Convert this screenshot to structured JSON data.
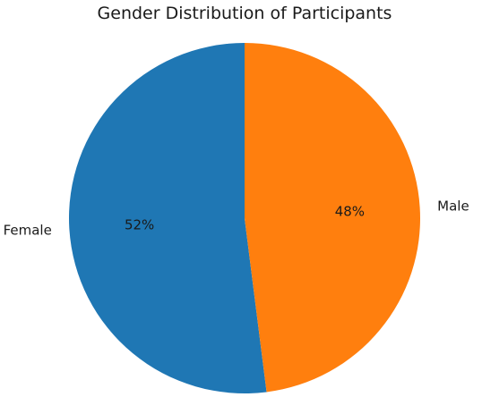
{
  "chart_data": {
    "type": "pie",
    "title": "Gender Distribution of Participants",
    "labels": [
      "Female",
      "Male"
    ],
    "values": [
      52,
      48
    ],
    "percent_labels": [
      "52%",
      "48%"
    ],
    "colors": [
      "#1f77b4",
      "#ff7f0e"
    ],
    "start_angle_deg": 90,
    "direction": "counterclockwise",
    "legend": "none"
  }
}
